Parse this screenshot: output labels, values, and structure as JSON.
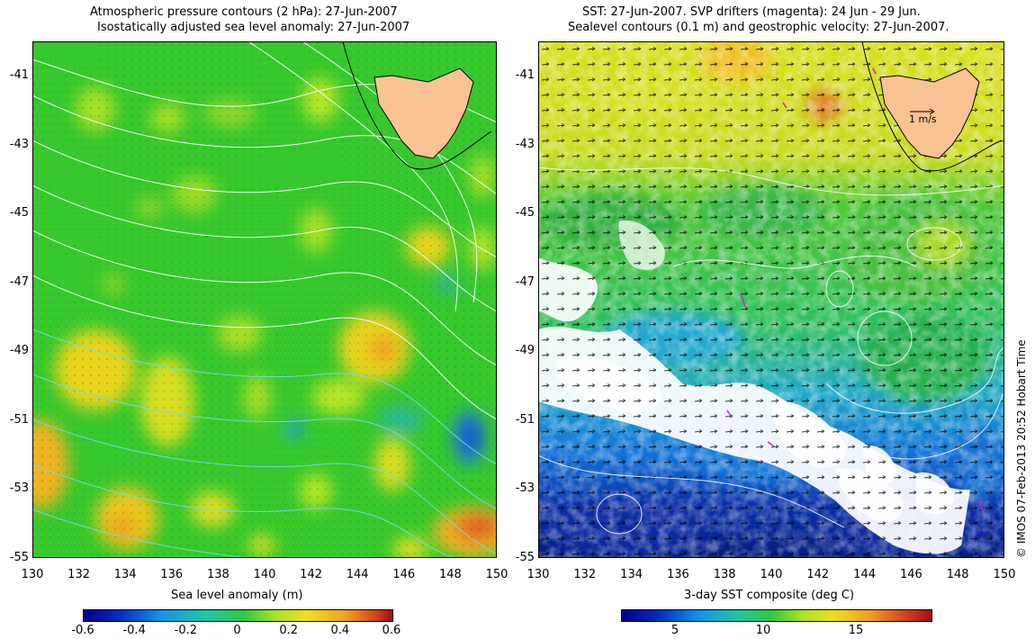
{
  "left_panel": {
    "title_line1": "Atmospheric pressure contours (2 hPa): 27-Jun-2007",
    "title_line2": "Isostatically adjusted sea level anomaly: 27-Jun-2007",
    "y_ticks": [
      "-41",
      "-43",
      "-45",
      "-47",
      "-49",
      "-51",
      "-53",
      "-55"
    ],
    "x_ticks": [
      "130",
      "132",
      "134",
      "136",
      "138",
      "140",
      "142",
      "144",
      "146",
      "148",
      "150"
    ],
    "colorbar": {
      "label": "Sea level anomaly (m)",
      "ticks": [
        "-0.6",
        "-0.4",
        "-0.2",
        "0",
        "0.2",
        "0.4",
        "0.6"
      ]
    }
  },
  "right_panel": {
    "title_line1": "SST: 27-Jun-2007. SVP drifters (magenta): 24 Jun - 29 Jun.",
    "title_line2": "Sealevel contours (0.1 m) and geostrophic velocity: 27-Jun-2007.",
    "y_ticks": [
      "-41",
      "-43",
      "-45",
      "-47",
      "-49",
      "-51",
      "-53",
      "-55"
    ],
    "x_ticks": [
      "130",
      "132",
      "134",
      "136",
      "138",
      "140",
      "142",
      "144",
      "146",
      "148",
      "150"
    ],
    "velocity_scale_label": "1 m/s",
    "colorbar": {
      "label": "3-day SST composite (deg C)",
      "ticks": [
        "5",
        "10",
        "15"
      ]
    }
  },
  "credit": "© IMOS 07-Feb-2013 20:52 Hobart Time",
  "colors": {
    "land": "#f9c393",
    "sla_background": "#37c82e",
    "contour": "#ffffff"
  }
}
